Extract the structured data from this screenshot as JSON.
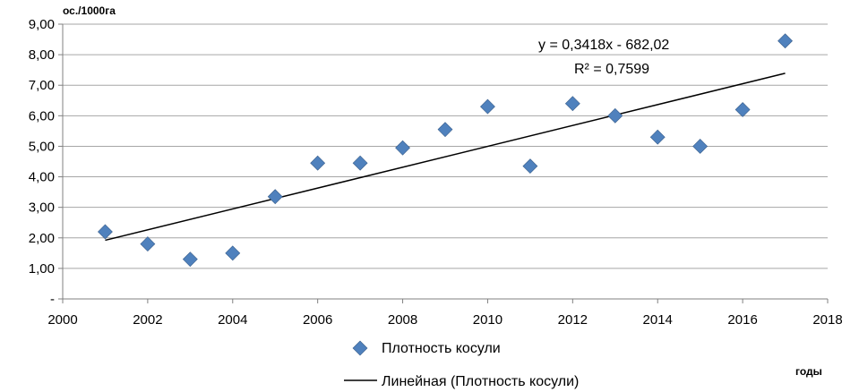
{
  "chart_data": {
    "type": "scatter",
    "ylabel": "ос./1000га",
    "xlabel": "годы",
    "xlim": [
      2000,
      2018
    ],
    "ylim": [
      0,
      9
    ],
    "x_ticks": [
      2000,
      2002,
      2004,
      2006,
      2008,
      2010,
      2012,
      2014,
      2016,
      2018
    ],
    "x_tick_labels": [
      "2000",
      "2002",
      "2004",
      "2006",
      "2008",
      "2010",
      "2012",
      "2014",
      "2016",
      "2018"
    ],
    "y_ticks": [
      0,
      1,
      2,
      3,
      4,
      5,
      6,
      7,
      8,
      9
    ],
    "y_tick_labels": [
      "-",
      "1,00",
      "2,00",
      "3,00",
      "4,00",
      "5,00",
      "6,00",
      "7,00",
      "8,00",
      "9,00"
    ],
    "grid": "horizontal",
    "legend_position": "bottom",
    "series": [
      {
        "name": "Плотность косули",
        "marker": "diamond",
        "color": "#4f81bd",
        "x": [
          2001,
          2002,
          2003,
          2004,
          2005,
          2006,
          2007,
          2008,
          2009,
          2010,
          2011,
          2012,
          2013,
          2014,
          2015,
          2016,
          2017
        ],
        "y": [
          2.2,
          1.8,
          1.3,
          1.5,
          3.35,
          4.45,
          4.45,
          4.95,
          5.55,
          6.3,
          4.35,
          6.4,
          6.0,
          5.3,
          5.0,
          6.2,
          8.45
        ]
      }
    ],
    "trendline": {
      "name": "Линейная (Плотность косули)",
      "type": "linear",
      "slope": 0.3418,
      "intercept": -682.02,
      "x_range": [
        2001,
        2017
      ],
      "color": "#000000",
      "equation_label": "y = 0,3418x - 682,02",
      "r2_label": "R² = 0,7599"
    }
  }
}
